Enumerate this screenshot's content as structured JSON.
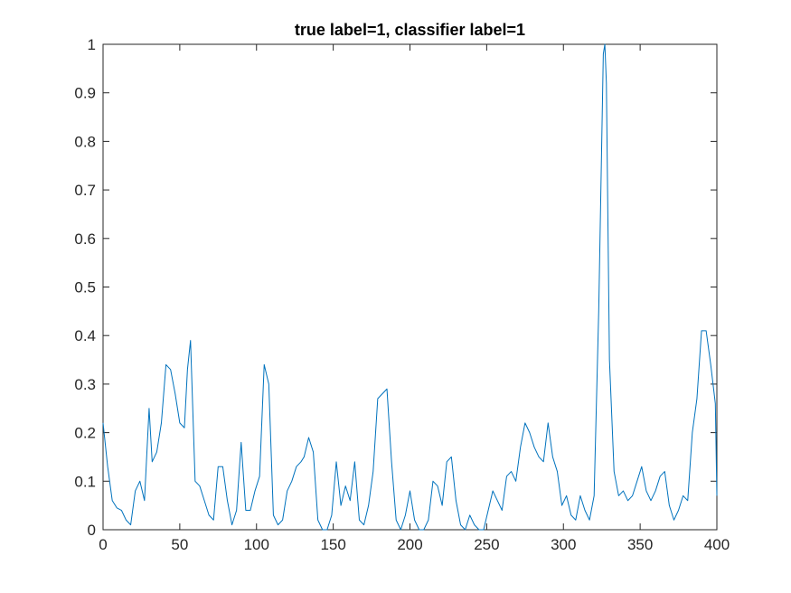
{
  "chart_data": {
    "type": "line",
    "title": "true label=1, classifier label=1",
    "xlabel": "",
    "ylabel": "",
    "xlim": [
      0,
      400
    ],
    "ylim": [
      0,
      1
    ],
    "xticks": [
      0,
      50,
      100,
      150,
      200,
      250,
      300,
      350,
      400
    ],
    "xtick_labels": [
      "0",
      "50",
      "100",
      "150",
      "200",
      "250",
      "300",
      "350",
      "400"
    ],
    "yticks": [
      0,
      0.1,
      0.2,
      0.3,
      0.4,
      0.5,
      0.6,
      0.7,
      0.8,
      0.9,
      1
    ],
    "ytick_labels": [
      "0",
      "0.1",
      "0.2",
      "0.3",
      "0.4",
      "0.5",
      "0.6",
      "0.7",
      "0.8",
      "0.9",
      "1"
    ],
    "grid": false,
    "box": true,
    "series": [
      {
        "color": "#0072BD",
        "x": [
          0,
          3,
          6,
          9,
          12,
          15,
          18,
          21,
          24,
          27,
          30,
          32,
          35,
          38,
          41,
          44,
          47,
          50,
          53,
          55,
          57,
          60,
          63,
          66,
          69,
          72,
          75,
          78,
          81,
          84,
          87,
          90,
          93,
          96,
          99,
          102,
          105,
          108,
          111,
          114,
          117,
          120,
          123,
          126,
          129,
          131,
          134,
          137,
          140,
          143,
          146,
          149,
          152,
          155,
          158,
          161,
          164,
          167,
          170,
          173,
          176,
          179,
          182,
          185,
          188,
          191,
          194,
          197,
          200,
          203,
          206,
          209,
          212,
          215,
          218,
          221,
          224,
          227,
          230,
          233,
          236,
          239,
          242,
          245,
          248,
          251,
          254,
          257,
          260,
          263,
          266,
          269,
          272,
          275,
          278,
          281,
          284,
          287,
          290,
          293,
          296,
          299,
          302,
          305,
          308,
          311,
          314,
          317,
          320,
          323,
          326,
          327,
          328,
          330,
          333,
          336,
          339,
          342,
          345,
          348,
          351,
          354,
          357,
          360,
          363,
          366,
          369,
          372,
          375,
          378,
          381,
          384,
          387,
          390,
          393,
          396,
          399,
          400
        ],
        "y": [
          0.22,
          0.13,
          0.06,
          0.045,
          0.04,
          0.02,
          0.01,
          0.08,
          0.1,
          0.06,
          0.25,
          0.14,
          0.16,
          0.22,
          0.34,
          0.33,
          0.28,
          0.22,
          0.21,
          0.33,
          0.39,
          0.1,
          0.09,
          0.06,
          0.03,
          0.02,
          0.13,
          0.13,
          0.06,
          0.01,
          0.04,
          0.18,
          0.04,
          0.04,
          0.08,
          0.11,
          0.34,
          0.3,
          0.03,
          0.01,
          0.02,
          0.08,
          0.1,
          0.13,
          0.14,
          0.15,
          0.19,
          0.16,
          0.02,
          0.0,
          0.0,
          0.03,
          0.14,
          0.05,
          0.09,
          0.06,
          0.14,
          0.02,
          0.01,
          0.05,
          0.12,
          0.27,
          0.28,
          0.29,
          0.14,
          0.02,
          0.0,
          0.03,
          0.08,
          0.02,
          0.0,
          0.0,
          0.02,
          0.1,
          0.09,
          0.05,
          0.14,
          0.15,
          0.06,
          0.01,
          0.0,
          0.03,
          0.01,
          0.0,
          0.0,
          0.04,
          0.08,
          0.06,
          0.04,
          0.11,
          0.12,
          0.1,
          0.17,
          0.22,
          0.2,
          0.17,
          0.15,
          0.14,
          0.22,
          0.15,
          0.12,
          0.05,
          0.07,
          0.03,
          0.02,
          0.07,
          0.04,
          0.02,
          0.07,
          0.45,
          0.98,
          1.0,
          0.92,
          0.35,
          0.12,
          0.07,
          0.08,
          0.06,
          0.07,
          0.1,
          0.13,
          0.08,
          0.06,
          0.08,
          0.11,
          0.12,
          0.05,
          0.02,
          0.04,
          0.07,
          0.06,
          0.2,
          0.27,
          0.41,
          0.41,
          0.34,
          0.26,
          0.07
        ]
      }
    ]
  }
}
